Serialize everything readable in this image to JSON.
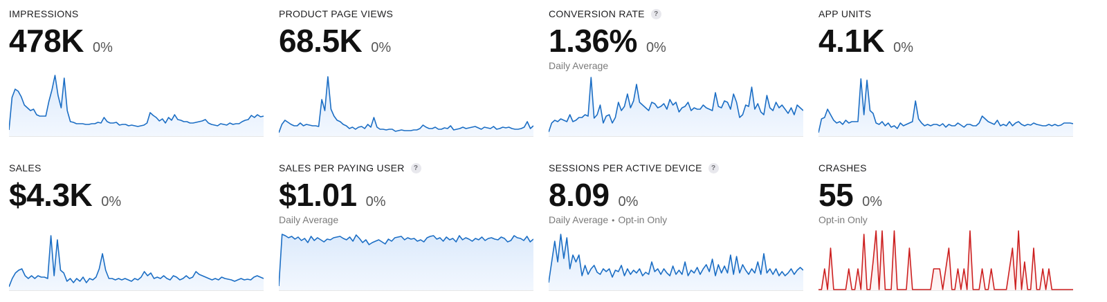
{
  "colors": {
    "line_blue": "#1a6dc4",
    "fill_blue": "#dceafc",
    "line_red": "#cc1f1f",
    "fill_red": "#fbe3e3"
  },
  "metrics": [
    {
      "id": "impressions",
      "title": "IMPRESSIONS",
      "value": "478K",
      "change": "0%",
      "help": "",
      "subtitle": [],
      "color": "blue",
      "series": [
        8,
        55,
        67,
        64,
        56,
        44,
        40,
        36,
        38,
        30,
        28,
        28,
        28,
        49,
        66,
        87,
        58,
        40,
        83,
        36,
        20,
        19,
        17,
        17,
        17,
        16,
        16,
        17,
        17,
        19,
        18,
        26,
        20,
        18,
        18,
        19,
        15,
        16,
        16,
        14,
        15,
        14,
        13,
        14,
        15,
        18,
        33,
        29,
        26,
        21,
        24,
        18,
        26,
        22,
        30,
        23,
        22,
        20,
        20,
        18,
        18,
        19,
        20,
        21,
        23,
        18,
        16,
        15,
        14,
        17,
        16,
        15,
        18,
        16,
        17,
        17,
        20,
        22,
        23,
        29,
        26,
        30,
        27,
        28
      ]
    },
    {
      "id": "product-page-views",
      "title": "PRODUCT PAGE VIEWS",
      "value": "68.5K",
      "change": "0%",
      "help": "",
      "subtitle": [],
      "color": "blue",
      "series": [
        4,
        16,
        22,
        19,
        16,
        14,
        14,
        18,
        14,
        16,
        15,
        14,
        14,
        13,
        52,
        36,
        85,
        38,
        28,
        22,
        20,
        16,
        14,
        10,
        12,
        9,
        12,
        13,
        10,
        16,
        12,
        26,
        12,
        9,
        9,
        8,
        9,
        9,
        6,
        7,
        8,
        7,
        7,
        7,
        8,
        8,
        10,
        15,
        12,
        10,
        10,
        12,
        9,
        9,
        11,
        10,
        14,
        8,
        9,
        10,
        12,
        10,
        11,
        12,
        13,
        11,
        9,
        12,
        11,
        10,
        13,
        9,
        10,
        12,
        11,
        12,
        10,
        9,
        9,
        10,
        12,
        20,
        10,
        14
      ]
    },
    {
      "id": "conversion-rate",
      "title": "CONVERSION RATE",
      "value": "1.36%",
      "change": "0%",
      "help": "?",
      "subtitle": [
        "Daily Average"
      ],
      "color": "blue",
      "series": [
        5,
        18,
        22,
        20,
        24,
        22,
        20,
        30,
        20,
        22,
        26,
        26,
        30,
        28,
        84,
        25,
        30,
        44,
        18,
        28,
        30,
        18,
        26,
        48,
        36,
        42,
        60,
        40,
        50,
        74,
        48,
        44,
        40,
        36,
        48,
        46,
        40,
        42,
        46,
        38,
        52,
        44,
        48,
        34,
        40,
        42,
        48,
        36,
        40,
        38,
        38,
        44,
        40,
        38,
        36,
        62,
        42,
        40,
        50,
        48,
        38,
        60,
        48,
        26,
        30,
        44,
        42,
        70,
        38,
        46,
        34,
        30,
        58,
        40,
        36,
        48,
        40,
        44,
        38,
        32,
        40,
        30,
        44,
        40,
        36
      ]
    },
    {
      "id": "app-units",
      "title": "APP UNITS",
      "value": "4.1K",
      "change": "0%",
      "help": "",
      "subtitle": [],
      "color": "blue",
      "series": [
        4,
        24,
        26,
        38,
        30,
        22,
        18,
        20,
        16,
        22,
        18,
        20,
        20,
        20,
        82,
        30,
        80,
        36,
        32,
        18,
        16,
        20,
        14,
        18,
        12,
        14,
        10,
        18,
        14,
        16,
        18,
        20,
        50,
        24,
        18,
        14,
        16,
        14,
        16,
        16,
        14,
        17,
        12,
        16,
        14,
        14,
        18,
        15,
        12,
        16,
        16,
        14,
        14,
        18,
        28,
        24,
        20,
        18,
        16,
        22,
        14,
        16,
        14,
        20,
        14,
        18,
        20,
        16,
        14,
        16,
        15,
        18,
        16,
        15,
        14,
        14,
        16,
        14,
        16,
        14,
        15,
        18,
        18,
        18,
        17
      ]
    },
    {
      "id": "sales",
      "title": "SALES",
      "value": "$4.3K",
      "change": "0%",
      "help": "",
      "subtitle": [],
      "color": "blue",
      "series": [
        4,
        16,
        24,
        28,
        30,
        20,
        16,
        20,
        16,
        20,
        18,
        18,
        16,
        78,
        20,
        72,
        28,
        24,
        12,
        16,
        10,
        16,
        12,
        18,
        10,
        16,
        14,
        18,
        30,
        52,
        28,
        16,
        16,
        14,
        16,
        14,
        16,
        14,
        12,
        16,
        14,
        18,
        26,
        20,
        24,
        16,
        18,
        16,
        20,
        16,
        14,
        20,
        18,
        14,
        16,
        20,
        16,
        18,
        26,
        22,
        20,
        18,
        16,
        14,
        16,
        14,
        18,
        16,
        15,
        14,
        12,
        14,
        16,
        14,
        15,
        14,
        18,
        20,
        18,
        16
      ]
    },
    {
      "id": "sales-per-paying-user",
      "title": "SALES PER PAYING USER",
      "value": "$1.01",
      "change": "0%",
      "help": "?",
      "subtitle": [
        "Daily Average"
      ],
      "color": "blue",
      "series": [
        5,
        80,
        78,
        75,
        77,
        73,
        76,
        71,
        74,
        68,
        77,
        71,
        75,
        72,
        69,
        73,
        72,
        75,
        76,
        77,
        74,
        72,
        76,
        70,
        79,
        74,
        68,
        72,
        65,
        68,
        70,
        72,
        69,
        66,
        73,
        70,
        75,
        76,
        77,
        72,
        75,
        73,
        74,
        70,
        72,
        69,
        75,
        77,
        78,
        73,
        75,
        70,
        76,
        72,
        74,
        69,
        78,
        72,
        75,
        73,
        70,
        74,
        72,
        76,
        71,
        74,
        75,
        73,
        72,
        76,
        74,
        69,
        71,
        78,
        75,
        74,
        71,
        77,
        69,
        73
      ]
    },
    {
      "id": "sessions-per-active-device",
      "title": "SESSIONS PER ACTIVE DEVICE",
      "value": "8.09",
      "change": "0%",
      "help": "?",
      "subtitle": [
        "Daily Average",
        "Opt-in Only"
      ],
      "color": "blue",
      "series": [
        10,
        40,
        70,
        40,
        80,
        45,
        75,
        30,
        50,
        40,
        50,
        20,
        35,
        22,
        30,
        35,
        25,
        22,
        30,
        26,
        30,
        18,
        28,
        26,
        35,
        20,
        30,
        22,
        28,
        24,
        30,
        20,
        25,
        22,
        40,
        26,
        30,
        22,
        30,
        24,
        20,
        34,
        22,
        28,
        22,
        40,
        20,
        28,
        24,
        32,
        22,
        30,
        36,
        26,
        44,
        20,
        36,
        24,
        34,
        24,
        50,
        22,
        48,
        24,
        36,
        28,
        22,
        30,
        24,
        40,
        22,
        52,
        24,
        30,
        22,
        30,
        20,
        26,
        20,
        24,
        30,
        22,
        28,
        32,
        28
      ]
    },
    {
      "id": "crashes",
      "title": "CRASHES",
      "value": "55",
      "change": "0%",
      "help": "",
      "subtitle": [
        "Opt-in Only"
      ],
      "color": "red",
      "series": [
        0,
        0,
        30,
        0,
        60,
        0,
        0,
        0,
        0,
        0,
        30,
        0,
        0,
        30,
        0,
        80,
        0,
        0,
        40,
        85,
        0,
        85,
        0,
        0,
        0,
        85,
        0,
        0,
        0,
        0,
        60,
        0,
        0,
        0,
        0,
        0,
        0,
        0,
        30,
        30,
        30,
        0,
        30,
        60,
        0,
        0,
        30,
        0,
        30,
        0,
        85,
        0,
        0,
        0,
        30,
        0,
        0,
        30,
        0,
        0,
        0,
        0,
        0,
        30,
        60,
        0,
        85,
        0,
        40,
        0,
        0,
        60,
        0,
        0,
        30,
        0,
        30,
        0,
        0,
        0,
        0,
        0,
        0,
        0,
        0
      ]
    }
  ]
}
